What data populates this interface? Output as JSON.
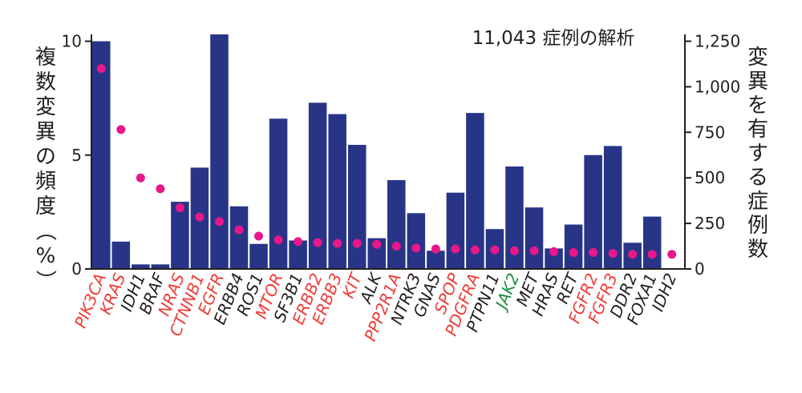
{
  "chart_data": {
    "type": "bar",
    "title": "11,043 症例の解析",
    "ylabel": "複数変異の頻度（%）",
    "y2label": "変異を有する症例数",
    "ylim": [
      0,
      10.3
    ],
    "y2lim": [
      0,
      1287.5
    ],
    "y_ticks": [
      {
        "value": 0,
        "label": "0"
      },
      {
        "value": 5,
        "label": "5"
      },
      {
        "value": 10,
        "label": "10"
      }
    ],
    "y2_ticks": [
      {
        "value": 0,
        "label": "0"
      },
      {
        "value": 250,
        "label": "250"
      },
      {
        "value": 500,
        "label": "500"
      },
      {
        "value": 750,
        "label": "750"
      },
      {
        "value": 1000,
        "label": "1,000"
      },
      {
        "value": 1250,
        "label": "1,250"
      }
    ],
    "categories": [
      "PIK3CA",
      "KRAS",
      "IDH1",
      "BRAF",
      "NRAS",
      "CTNNB1",
      "EGFR",
      "ERBB4",
      "ROS1",
      "MTOR",
      "SF3B1",
      "ERBB2",
      "ERBB3",
      "KIT",
      "ALK",
      "PPP2R1A",
      "NTRK3",
      "GNAS",
      "SPOP",
      "PDGFRA",
      "PTPN11",
      "JAK2",
      "MET",
      "HRAS",
      "RET",
      "FGFR2",
      "FGFR3",
      "DDR2",
      "FOXA1",
      "IDH2"
    ],
    "label_colors": [
      "red",
      "red",
      "black",
      "black",
      "red",
      "red",
      "red",
      "black",
      "black",
      "red",
      "black",
      "red",
      "red",
      "red",
      "black",
      "red",
      "black",
      "black",
      "red",
      "red",
      "black",
      "green",
      "black",
      "black",
      "black",
      "red",
      "red",
      "black",
      "black",
      "black"
    ],
    "series": [
      {
        "type": "bar",
        "axis": "left",
        "values": [
          10.0,
          1.2,
          0.2,
          0.2,
          2.95,
          4.45,
          10.3,
          2.75,
          1.1,
          6.6,
          1.25,
          7.3,
          6.8,
          5.45,
          1.35,
          3.9,
          2.45,
          0.8,
          3.35,
          6.85,
          1.75,
          4.5,
          2.7,
          0.9,
          1.95,
          5.0,
          5.4,
          1.15,
          2.3,
          0.0
        ]
      },
      {
        "type": "scatter",
        "axis": "right",
        "values": [
          1100,
          765,
          500,
          440,
          335,
          285,
          260,
          215,
          180,
          160,
          150,
          145,
          140,
          140,
          135,
          125,
          115,
          110,
          110,
          105,
          105,
          100,
          100,
          95,
          90,
          90,
          85,
          80,
          80,
          80
        ]
      }
    ],
    "colors": {
      "bar": "#283587",
      "dot": "#e8178a",
      "red": "#ef3b36",
      "black": "#231f20",
      "green": "#1e8b3e",
      "axis": "#231f20"
    }
  }
}
